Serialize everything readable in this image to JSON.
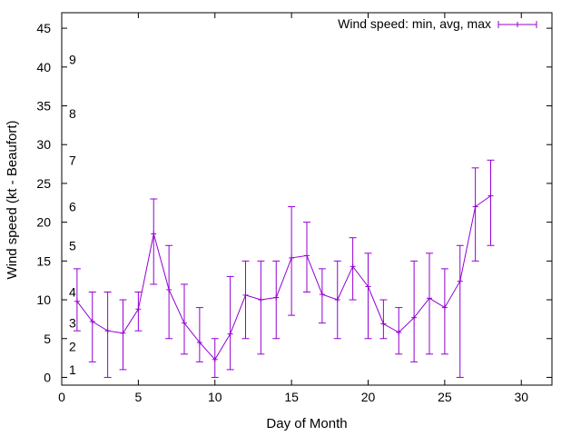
{
  "chart_data": {
    "type": "line",
    "xlabel": "Day of Month",
    "ylabel": "Wind speed (kt - Beaufort)",
    "xlim": [
      0,
      32
    ],
    "ylim": [
      -1,
      47
    ],
    "x_ticks": [
      0,
      5,
      10,
      15,
      20,
      25,
      30
    ],
    "y_ticks": [
      0,
      5,
      10,
      15,
      20,
      25,
      30,
      35,
      40,
      45
    ],
    "grid": false,
    "legend_position": "top-right",
    "beaufort_labels": [
      {
        "label": "1",
        "y": 1
      },
      {
        "label": "2",
        "y": 4
      },
      {
        "label": "3",
        "y": 7
      },
      {
        "label": "4",
        "y": 11
      },
      {
        "label": "5",
        "y": 17
      },
      {
        "label": "6",
        "y": 22
      },
      {
        "label": "7",
        "y": 28
      },
      {
        "label": "8",
        "y": 34
      },
      {
        "label": "9",
        "y": 41
      }
    ],
    "series": [
      {
        "name": "Wind speed: min, avg, max",
        "color": "#9400d3",
        "x": [
          1,
          2,
          3,
          4,
          5,
          6,
          7,
          8,
          9,
          10,
          11,
          12,
          13,
          14,
          15,
          16,
          17,
          18,
          19,
          20,
          21,
          22,
          23,
          24,
          25,
          26,
          27,
          28
        ],
        "avg": [
          9.8,
          7.2,
          6.0,
          5.7,
          8.8,
          18.5,
          11.3,
          7.0,
          4.5,
          2.3,
          5.6,
          10.6,
          10.0,
          10.3,
          15.4,
          15.7,
          10.7,
          10.0,
          14.3,
          11.7,
          6.9,
          5.8,
          7.7,
          10.2,
          9.0,
          12.4,
          22.0,
          23.4
        ],
        "min": [
          6,
          2,
          0,
          1,
          6,
          12,
          5,
          3,
          2,
          0,
          1,
          5,
          3,
          5,
          8,
          11,
          7,
          5,
          10,
          5,
          5,
          3,
          2,
          3,
          3,
          0,
          15,
          17
        ],
        "max": [
          14,
          11,
          11,
          10,
          11,
          23,
          17,
          12,
          9,
          5,
          13,
          15,
          15,
          15,
          22,
          20,
          14,
          15,
          18,
          16,
          10,
          9,
          15,
          16,
          14,
          17,
          27,
          28
        ]
      }
    ]
  }
}
